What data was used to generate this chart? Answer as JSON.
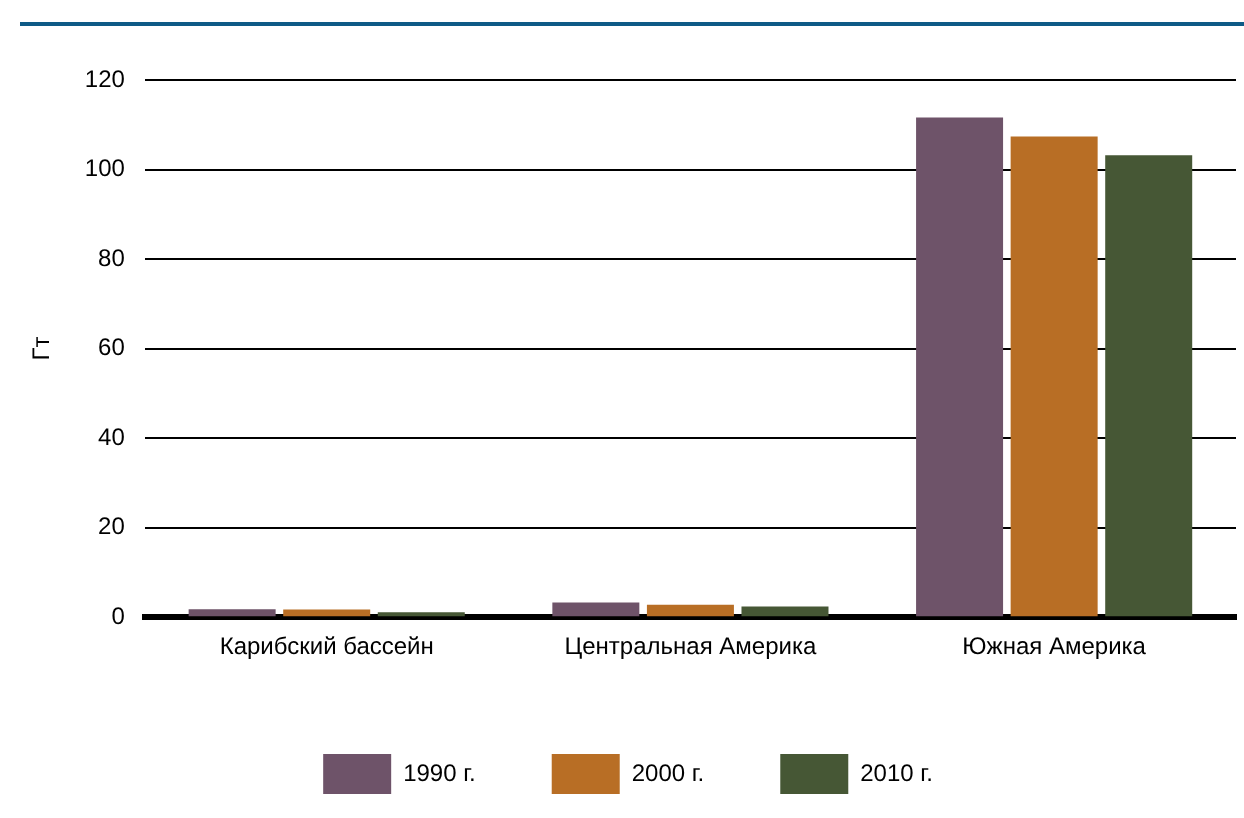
{
  "chart_data": {
    "type": "bar",
    "ylabel": "Гт",
    "categories": [
      "Карибский бассейн",
      "Центральная Америка",
      "Южная Америка"
    ],
    "series": [
      {
        "name": "1990 г.",
        "color": "#6e5369",
        "values": [
          1.8,
          3.3,
          111.6
        ]
      },
      {
        "name": "2000 г.",
        "color": "#b86e25",
        "values": [
          1.7,
          2.8,
          107.4
        ]
      },
      {
        "name": "2010 г.",
        "color": "#465735",
        "values": [
          1.1,
          2.4,
          103.2
        ]
      }
    ],
    "ylim": [
      0,
      120
    ],
    "yticks": [
      0,
      20,
      40,
      60,
      80,
      100,
      120
    ],
    "grid": "y",
    "legend": "bottom"
  }
}
